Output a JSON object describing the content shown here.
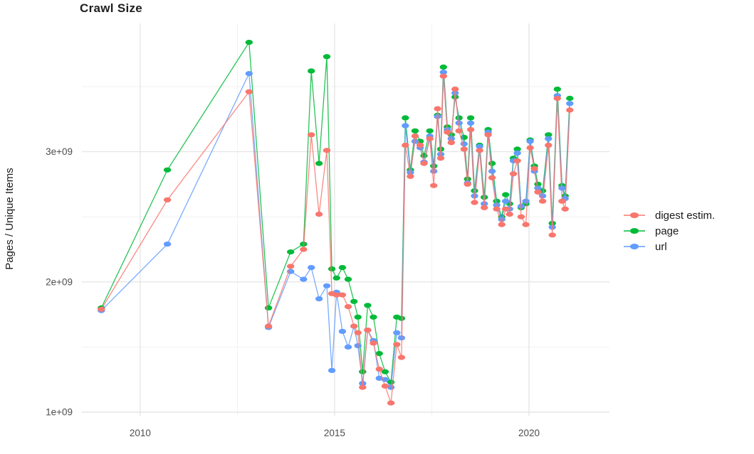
{
  "title": "Crawl Size",
  "chart_data": {
    "type": "line",
    "title": "Crawl Size",
    "xlabel": "",
    "ylabel": "Pages / Unique Items",
    "value_unit": "items",
    "value_multiplier": 1000000000,
    "xlim": [
      2008.5,
      2022.07
    ],
    "ylim": [
      0.973,
      3.985
    ],
    "grid": "major and minor, light gray on white (ggplot minimal style)",
    "legend_position": "right",
    "x_ticks": [
      {
        "v": 2010,
        "label": "2010"
      },
      {
        "v": 2015,
        "label": "2015"
      },
      {
        "v": 2020,
        "label": "2020"
      }
    ],
    "x_minor_ticks": [
      2012.5,
      2017.5
    ],
    "y_ticks": [
      {
        "v": 1,
        "label": "1e+09"
      },
      {
        "v": 2,
        "label": "2e+09"
      },
      {
        "v": 3,
        "label": "3e+09"
      }
    ],
    "y_minor_ticks": [
      1.5,
      2.5,
      3.5
    ],
    "x": [
      2009.0,
      2010.7,
      2012.8,
      2013.3,
      2013.87,
      2014.2,
      2014.4,
      2014.6,
      2014.8,
      2014.93,
      2015.05,
      2015.2,
      2015.35,
      2015.5,
      2015.6,
      2015.72,
      2015.85,
      2016.0,
      2016.15,
      2016.3,
      2016.45,
      2016.6,
      2016.72,
      2016.82,
      2016.95,
      2017.07,
      2017.2,
      2017.3,
      2017.45,
      2017.55,
      2017.65,
      2017.73,
      2017.8,
      2017.9,
      2018.0,
      2018.1,
      2018.2,
      2018.33,
      2018.42,
      2018.5,
      2018.6,
      2018.73,
      2018.85,
      2018.95,
      2019.05,
      2019.17,
      2019.3,
      2019.4,
      2019.5,
      2019.6,
      2019.7,
      2019.8,
      2019.92,
      2020.03,
      2020.14,
      2020.23,
      2020.35,
      2020.5,
      2020.6,
      2020.73,
      2020.85,
      2020.93,
      2021.05
    ],
    "series": [
      {
        "name": "digest estim.",
        "color": "#F8766D",
        "values": [
          1.79,
          2.63,
          3.46,
          1.66,
          2.12,
          2.25,
          3.13,
          2.52,
          3.01,
          1.91,
          1.9,
          1.9,
          1.81,
          1.66,
          1.61,
          1.19,
          1.63,
          1.53,
          1.33,
          1.2,
          1.07,
          1.52,
          1.42,
          3.05,
          2.81,
          3.12,
          3.05,
          2.91,
          3.1,
          2.74,
          3.33,
          2.95,
          3.58,
          3.15,
          3.07,
          3.48,
          3.16,
          3.02,
          2.75,
          3.17,
          2.61,
          3.01,
          2.57,
          3.13,
          2.8,
          2.56,
          2.44,
          2.56,
          2.52,
          2.83,
          2.93,
          2.5,
          2.44,
          3.03,
          2.87,
          2.69,
          2.62,
          3.05,
          2.36,
          3.41,
          2.62,
          2.56,
          3.32
        ]
      },
      {
        "name": "page",
        "color": "#00BA38",
        "values": [
          1.8,
          2.86,
          3.84,
          1.8,
          2.23,
          2.29,
          3.62,
          2.91,
          3.73,
          2.1,
          2.03,
          2.11,
          2.02,
          1.85,
          1.73,
          1.31,
          1.82,
          1.73,
          1.45,
          1.31,
          1.23,
          1.73,
          1.72,
          3.26,
          2.86,
          3.16,
          3.08,
          2.97,
          3.16,
          2.89,
          3.28,
          3.02,
          3.65,
          3.19,
          3.13,
          3.42,
          3.26,
          3.11,
          2.79,
          3.26,
          2.7,
          3.05,
          2.65,
          3.17,
          2.91,
          2.62,
          2.5,
          2.67,
          2.6,
          2.95,
          3.02,
          2.57,
          2.6,
          3.09,
          2.89,
          2.75,
          2.7,
          3.13,
          2.45,
          3.48,
          2.74,
          2.66,
          3.41
        ]
      },
      {
        "name": "url",
        "color": "#619CFF",
        "values": [
          1.78,
          2.29,
          3.6,
          1.65,
          2.08,
          2.02,
          2.11,
          1.87,
          1.97,
          1.32,
          1.92,
          1.62,
          1.5,
          1.66,
          1.51,
          1.22,
          1.63,
          1.55,
          1.26,
          1.25,
          1.19,
          1.61,
          1.57,
          3.2,
          2.84,
          3.08,
          3.03,
          2.92,
          3.12,
          2.85,
          3.27,
          2.98,
          3.61,
          3.17,
          3.1,
          3.45,
          3.22,
          3.06,
          2.76,
          3.22,
          2.66,
          3.04,
          2.6,
          3.15,
          2.85,
          2.59,
          2.48,
          2.62,
          2.56,
          2.93,
          2.99,
          2.58,
          2.62,
          3.08,
          2.85,
          2.72,
          2.66,
          3.1,
          2.42,
          3.43,
          2.72,
          2.64,
          3.37
        ]
      }
    ]
  },
  "colors": {
    "background": "#ffffff",
    "grid_major": "#e4e4e4",
    "grid_minor": "#f0f0f0",
    "tick_text": "#4d4d4d",
    "title_text": "#1f1f1f",
    "axis_title_text": "#1a1a1a"
  }
}
